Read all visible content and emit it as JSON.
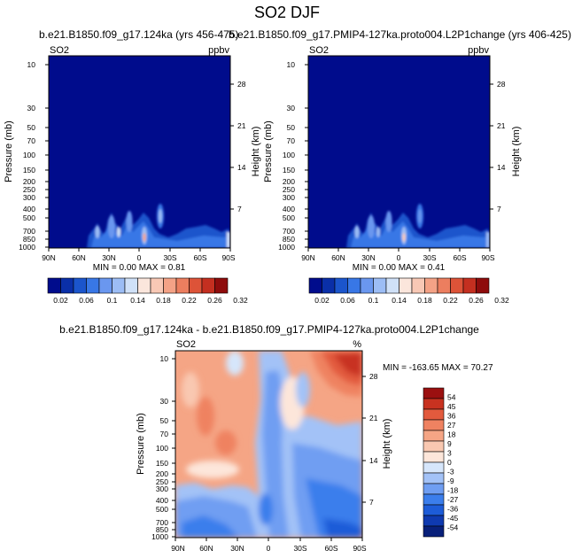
{
  "title": "SO2 DJF",
  "colors": {
    "seq": [
      "#000c8c",
      "#0a2fa8",
      "#1b55cc",
      "#3877e6",
      "#6a97ef",
      "#9cbdf5",
      "#d0e1f8",
      "#fbe6dc",
      "#f8c8b5",
      "#f4a286",
      "#ec7e5f",
      "#dd5338",
      "#c42f20",
      "#8e0c0c"
    ],
    "div": [
      "#08207a",
      "#0f3ab0",
      "#1d5cd8",
      "#3b7eec",
      "#6f9ef2",
      "#a3c2f7",
      "#d6e6fb",
      "#fde6da",
      "#f9c8b1",
      "#f5a585",
      "#ef8261",
      "#e25a3d",
      "#c83220",
      "#9b1010"
    ],
    "frame": "#000000"
  },
  "chart_data": [
    {
      "type": "heatmap",
      "title_left": "b.e21.B1850.f09_g17.124ka (yrs 456-475)",
      "left_label": "SO2",
      "right_label": "ppbv",
      "xlabel": "",
      "ylabel": "Pressure (mb)",
      "ylabel_right": "Height (km)",
      "xticks": [
        "90N",
        "60N",
        "30N",
        "0",
        "30S",
        "60S",
        "90S"
      ],
      "yticks": [
        10,
        30,
        50,
        70,
        100,
        150,
        200,
        250,
        300,
        400,
        500,
        700,
        850,
        1000
      ],
      "yticks_right": [
        28,
        21,
        14,
        7
      ],
      "ylim": [
        1000,
        10
      ],
      "stats": "MIN =  0.00  MAX =  0.81",
      "colorbar_ticks": [
        "0.02",
        "0.06",
        "0.1",
        "0.14",
        "0.18",
        "0.22",
        "0.26",
        "0.32"
      ]
    },
    {
      "type": "heatmap",
      "title_left": "b.e21.B1850.f09_g17.PMIP4-127ka.proto004.L2P1change (yrs 406-425)",
      "left_label": "SO2",
      "right_label": "ppbv",
      "xlabel": "",
      "ylabel": "Pressure (mb)",
      "ylabel_right": "Height (km)",
      "xticks": [
        "90N",
        "60N",
        "30N",
        "0",
        "30S",
        "60S",
        "90S"
      ],
      "yticks": [
        10,
        30,
        50,
        70,
        100,
        150,
        200,
        250,
        300,
        400,
        500,
        700,
        850,
        1000
      ],
      "yticks_right": [
        28,
        21,
        14,
        7
      ],
      "ylim": [
        1000,
        10
      ],
      "stats": "MIN =  0.00  MAX =  0.41",
      "colorbar_ticks": [
        "0.02",
        "0.06",
        "0.1",
        "0.14",
        "0.18",
        "0.22",
        "0.26",
        "0.32"
      ]
    },
    {
      "type": "heatmap",
      "title_left": "b.e21.B1850.f09_g17.124ka - b.e21.B1850.f09_g17.PMIP4-127ka.proto004.L2P1change",
      "left_label": "SO2",
      "right_label": "%",
      "xlabel": "",
      "ylabel": "Pressure (mb)",
      "ylabel_right": "Height (km)",
      "xticks": [
        "90N",
        "60N",
        "30N",
        "0",
        "30S",
        "60S",
        "90S"
      ],
      "yticks": [
        10,
        30,
        50,
        70,
        100,
        150,
        200,
        250,
        300,
        400,
        500,
        700,
        850,
        1000
      ],
      "yticks_right": [
        28,
        21,
        14,
        7
      ],
      "ylim": [
        1000,
        10
      ],
      "stats": "MIN = -163.65  MAX = 70.27",
      "colorbar_ticks": [
        "54",
        "45",
        "36",
        "27",
        "18",
        "9",
        "3",
        "0",
        "-3",
        "-9",
        "-18",
        "-27",
        "-36",
        "-45",
        "-54"
      ]
    }
  ]
}
